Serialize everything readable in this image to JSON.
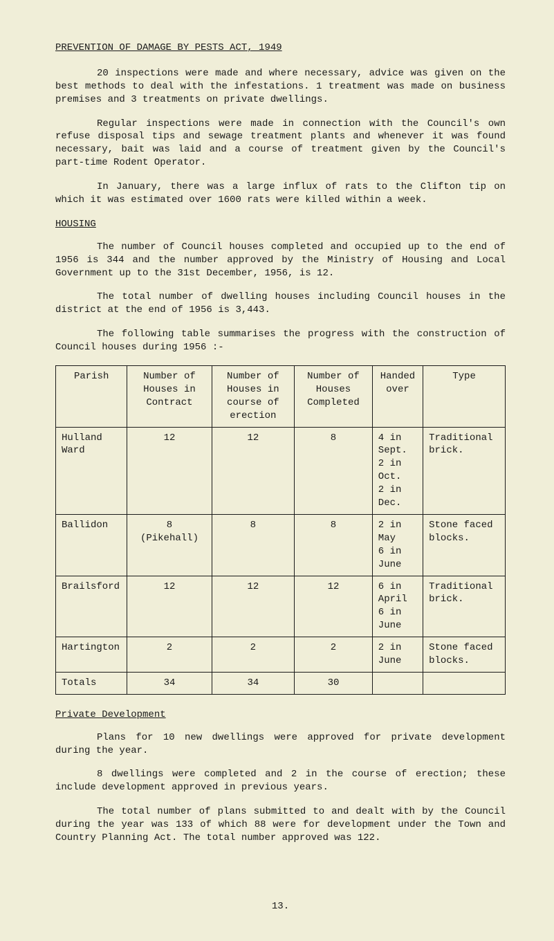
{
  "title": "PREVENTION OF DAMAGE BY PESTS ACT, 1949",
  "para1": "20 inspections were made and where necessary, advice was given on the best methods to deal with the infestations.  1 treatment was made on business premises and 3 treatments on private dwellings.",
  "para2": "Regular inspections were made in connection with the Council's own refuse disposal tips and sewage treatment plants and whenever it was found necessary, bait was laid and a course of treatment given by the Council's part-time Rodent Operator.",
  "para3": "In January, there was a large influx of rats to the Clifton tip on which it was estimated over 1600 rats were killed within a week.",
  "housing_head": "HOUSING",
  "housing_p1": "The number of Council houses completed and occupied up to the end of 1956 is 344 and the number approved by the Ministry of Housing and Local Government up to the 31st December, 1956, is 12.",
  "housing_p2": "The total number of dwelling houses including Council houses in the district at the end of 1956 is 3,443.",
  "housing_p3": "The following table summarises the progress with the construction of Council houses during 1956 :-",
  "table": {
    "headers": [
      "Parish",
      "Number of Houses in Contract",
      "Number of Houses in course of erection",
      "Number of Houses Completed",
      "Handed over",
      "Type"
    ],
    "rows": [
      [
        "Hulland Ward",
        "12",
        "12",
        "8",
        "4 in Sept.\n2 in Oct.\n2 in Dec.",
        "Traditional brick."
      ],
      [
        "Ballidon",
        "8\n(Pikehall)",
        "8",
        "8",
        "2 in May\n6 in June",
        "Stone faced blocks."
      ],
      [
        "Brailsford",
        "12",
        "12",
        "12",
        "6 in April\n6 in June",
        "Traditional brick."
      ],
      [
        "Hartington",
        "2",
        "2",
        "2",
        "2 in June",
        "Stone faced blocks."
      ],
      [
        "Totals",
        "34",
        "34",
        "30",
        "",
        ""
      ]
    ]
  },
  "private_head": "Private Development",
  "private_p1": "Plans for 10 new dwellings were approved for private development during the year.",
  "private_p2": "8 dwellings were completed and 2 in the course of erection;  these include development approved in previous years.",
  "private_p3": "The total number of plans submitted to and dealt with by the Council during the year was 133 of which 88 were for development under the Town and Country Planning Act.  The total number approved was 122.",
  "page_number": "13."
}
